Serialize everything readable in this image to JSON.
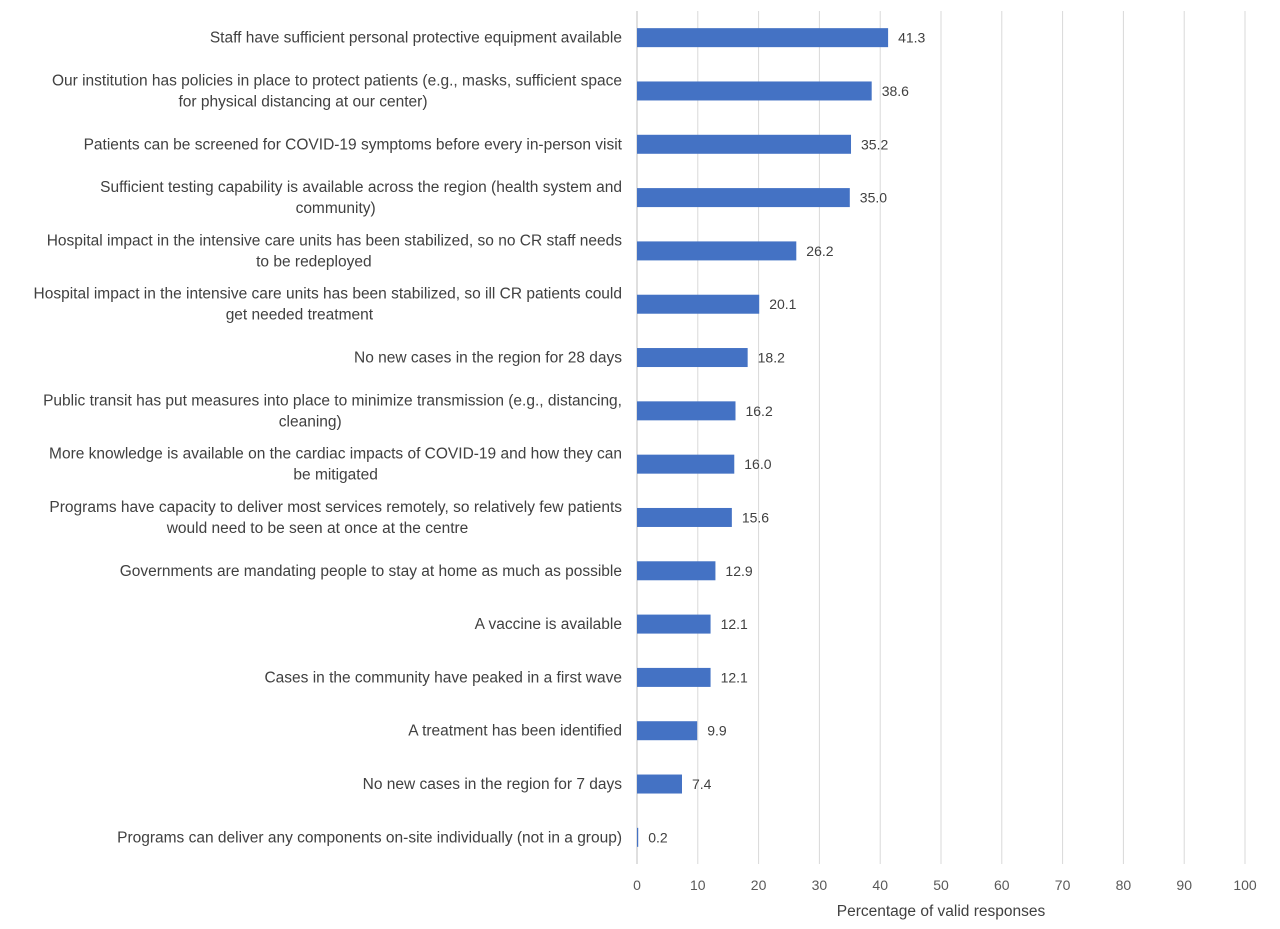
{
  "chart_data": {
    "type": "bar",
    "orientation": "horizontal",
    "title": "",
    "xlabel": "Percentage of valid responses",
    "ylabel": "",
    "xlim": [
      0,
      100
    ],
    "x_ticks": [
      0,
      10,
      20,
      30,
      40,
      50,
      60,
      70,
      80,
      90,
      100
    ],
    "grid": true,
    "bar_color": "#4472C4",
    "categories": [
      [
        "Staff have sufficient personal protective equipment available"
      ],
      [
        "Our institution has policies in place to protect patients (e.g., masks, sufficient space",
        "for physical distancing at our center)"
      ],
      [
        "Patients can be screened for COVID-19 symptoms before every in-person visit"
      ],
      [
        "Sufficient testing capability is available across the region (health system and",
        "community)"
      ],
      [
        "Hospital impact in the intensive care units has been stabilized, so no CR staff needs",
        "to be redeployed"
      ],
      [
        "Hospital impact in the intensive care units has been stabilized, so ill CR patients could",
        "get needed treatment"
      ],
      [
        "No new cases in the region for 28 days"
      ],
      [
        "Public transit has put measures into place to minimize transmission (e.g., distancing,",
        "cleaning)"
      ],
      [
        "More knowledge is available on the cardiac impacts of COVID-19 and how they can",
        "be mitigated"
      ],
      [
        "Programs have capacity to deliver most services remotely, so relatively few patients",
        "would need to be seen at once at the centre"
      ],
      [
        "Governments are mandating people to stay at home as much as possible"
      ],
      [
        "A vaccine is available"
      ],
      [
        "Cases in the community have peaked in a first wave"
      ],
      [
        "A treatment has been identified"
      ],
      [
        "No new cases in the region for 7 days"
      ],
      [
        "Programs can deliver any components on-site individually (not in a group)"
      ]
    ],
    "values": [
      41.3,
      38.6,
      35.2,
      35.0,
      26.2,
      20.1,
      18.2,
      16.2,
      16.0,
      15.6,
      12.9,
      12.1,
      12.1,
      9.9,
      7.4,
      0.2
    ],
    "value_labels": [
      "41.3",
      "38.6",
      "35.2",
      "35.0",
      "26.2",
      "20.1",
      "18.2",
      "16.2",
      "16.0",
      "15.6",
      "12.9",
      "12.1",
      "12.1",
      "9.9",
      "7.4",
      "0.2"
    ]
  }
}
